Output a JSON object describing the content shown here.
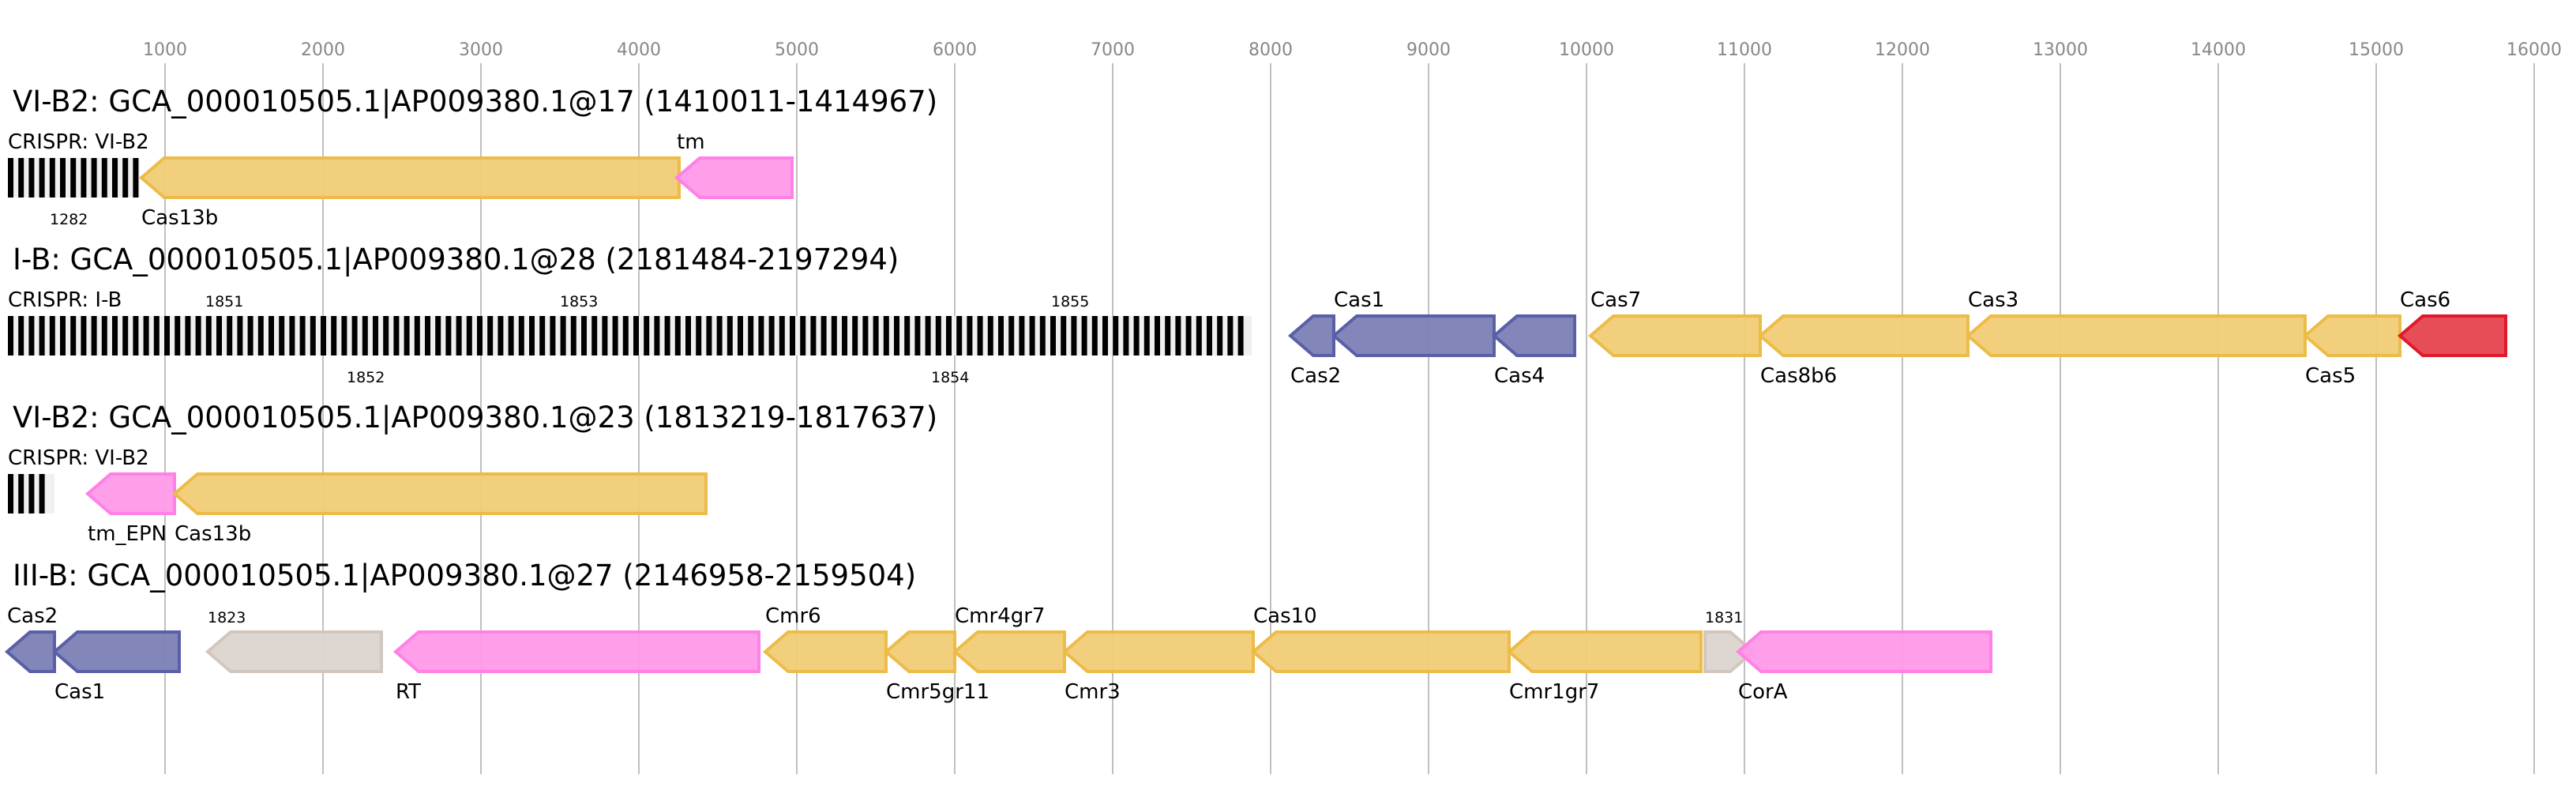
{
  "axis": {
    "unit": "bp",
    "ticks": [
      1000,
      2000,
      3000,
      4000,
      5000,
      6000,
      7000,
      8000,
      9000,
      10000,
      11000,
      12000,
      13000,
      14000,
      15000,
      16000
    ],
    "tick_labels": [
      "1000",
      "2000",
      "3000",
      "4000",
      "5000",
      "6000",
      "7000",
      "8000",
      "9000",
      "10000",
      "11000",
      "12000",
      "13000",
      "14000",
      "15000",
      "16000"
    ],
    "range": [
      0,
      16200
    ],
    "grid": true
  },
  "colors": {
    "yellow": {
      "fill": "#f0cc75",
      "stroke": "#edbb48"
    },
    "pink": {
      "fill": "#ff99e8",
      "stroke": "#ff80e6"
    },
    "blue": {
      "fill": "#7b7fb5",
      "stroke": "#5a5fa8"
    },
    "red": {
      "fill": "#e5434f",
      "stroke": "#e01a2a"
    },
    "gray": {
      "fill": "#dcd4cf",
      "stroke": "#d2c7be"
    },
    "crispr_repeat": "#000000",
    "crispr_spacer": "#f0f0f0"
  },
  "loci": [
    {
      "title": "VI-B2: GCA_000010505.1|AP009380.1@17 (1410011-1414967)",
      "crispr": {
        "label": "CRISPR: VI-B2",
        "start": 0,
        "end": 840,
        "ids": [
          {
            "text": "1282",
            "pos": 270,
            "side": "above"
          }
        ]
      },
      "genes": [
        {
          "name": "Cas13b",
          "start": 850,
          "end": 4255,
          "strand": "-",
          "color": "yellow",
          "label_side": "below"
        },
        {
          "name": "tm",
          "start": 4240,
          "end": 4970,
          "strand": "-",
          "color": "pink",
          "label_side": "above"
        }
      ]
    },
    {
      "title": "I-B: GCA_000010505.1|AP009380.1@28 (2181484-2197294)",
      "crispr": {
        "label": "CRISPR: I-B",
        "start": 0,
        "end": 7880,
        "ids": [
          {
            "text": "1851",
            "pos": 1255,
            "side": "above"
          },
          {
            "text": "1852",
            "pos": 2150,
            "side": "below"
          },
          {
            "text": "1853",
            "pos": 3500,
            "side": "above"
          },
          {
            "text": "1854",
            "pos": 5850,
            "side": "below"
          },
          {
            "text": "1855",
            "pos": 6610,
            "side": "above"
          }
        ]
      },
      "genes": [
        {
          "name": "Cas2",
          "start": 8125,
          "end": 8400,
          "strand": "-",
          "color": "blue",
          "label_side": "below"
        },
        {
          "name": "Cas1",
          "start": 8400,
          "end": 9415,
          "strand": "-",
          "color": "blue",
          "label_side": "above"
        },
        {
          "name": "Cas4",
          "start": 9415,
          "end": 9925,
          "strand": "-",
          "color": "blue",
          "label_side": "below"
        },
        {
          "name": "Cas7",
          "start": 10025,
          "end": 11100,
          "strand": "-",
          "color": "yellow",
          "label_side": "above"
        },
        {
          "name": "Cas8b6",
          "start": 11100,
          "end": 12415,
          "strand": "-",
          "color": "yellow",
          "label_side": "below"
        },
        {
          "name": "Cas3",
          "start": 12415,
          "end": 14550,
          "strand": "-",
          "color": "yellow",
          "label_side": "above"
        },
        {
          "name": "Cas5",
          "start": 14550,
          "end": 15150,
          "strand": "-",
          "color": "yellow",
          "label_side": "below"
        },
        {
          "name": "Cas6",
          "start": 15150,
          "end": 15820,
          "strand": "-",
          "color": "red",
          "label_side": "above"
        }
      ]
    },
    {
      "title": "VI-B2: GCA_000010505.1|AP009380.1@23 (1813219-1817637)",
      "crispr": {
        "label": "CRISPR: VI-B2",
        "start": 0,
        "end": 300,
        "ids": []
      },
      "genes": [
        {
          "name": "tm_EPN",
          "start": 510,
          "end": 1060,
          "strand": "-",
          "color": "pink",
          "label_side": "above"
        },
        {
          "name": "Cas13b",
          "start": 1060,
          "end": 4425,
          "strand": "-",
          "color": "yellow",
          "label_side": "below"
        }
      ]
    },
    {
      "title": "III-B: GCA_000010505.1|AP009380.1@27 (2146958-2159504)",
      "crispr": null,
      "genes": [
        {
          "name": "Cas2",
          "start": 0,
          "end": 300,
          "strand": "-",
          "color": "blue",
          "label_side": "above"
        },
        {
          "name": "Cas1",
          "start": 300,
          "end": 1090,
          "strand": "-",
          "color": "blue",
          "label_side": "below"
        },
        {
          "name": "1823",
          "start": 1270,
          "end": 2370,
          "strand": "-",
          "color": "gray",
          "label_side": "above",
          "small": true
        },
        {
          "name": "RT",
          "start": 2460,
          "end": 4760,
          "strand": "-",
          "color": "pink",
          "label_side": "below"
        },
        {
          "name": "Cmr6",
          "start": 4800,
          "end": 5565,
          "strand": "-",
          "color": "yellow",
          "label_side": "above"
        },
        {
          "name": "Cmr5gr11",
          "start": 5565,
          "end": 6000,
          "strand": "-",
          "color": "yellow",
          "label_side": "below"
        },
        {
          "name": "Cmr4gr7",
          "start": 6000,
          "end": 6695,
          "strand": "-",
          "color": "yellow",
          "label_side": "above"
        },
        {
          "name": "Cmr3",
          "start": 6695,
          "end": 7890,
          "strand": "-",
          "color": "yellow",
          "label_side": "below"
        },
        {
          "name": "Cas10",
          "start": 7890,
          "end": 9510,
          "strand": "-",
          "color": "yellow",
          "label_side": "above"
        },
        {
          "name": "Cmr1gr7",
          "start": 9510,
          "end": 10725,
          "strand": "-",
          "color": "yellow",
          "label_side": "below"
        },
        {
          "name": "1831",
          "start": 10750,
          "end": 11055,
          "strand": "+",
          "color": "gray",
          "label_side": "above",
          "small": true
        },
        {
          "name": "CorA",
          "start": 10960,
          "end": 12560,
          "strand": "-",
          "color": "pink",
          "label_side": "below"
        }
      ]
    }
  ]
}
